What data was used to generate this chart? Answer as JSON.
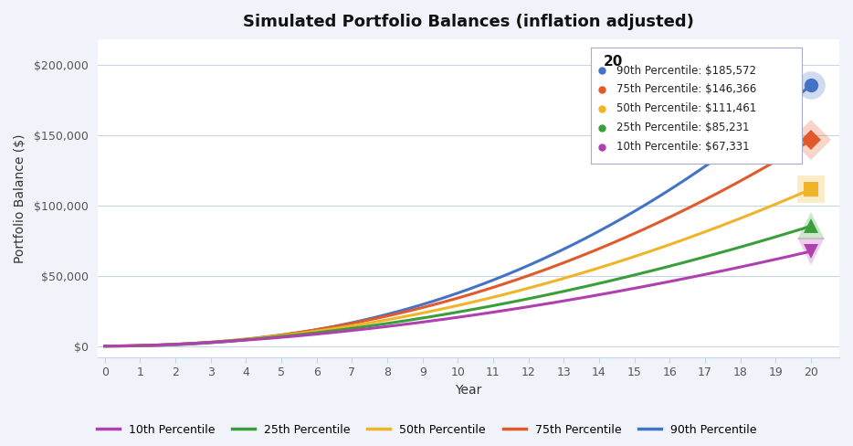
{
  "title": "Simulated Portfolio Balances (inflation adjusted)",
  "xlabel": "Year",
  "ylabel": "Portfolio Balance ($)",
  "years": 20,
  "series": [
    {
      "label": "90th Percentile",
      "color": "#4472c4",
      "final": 185572,
      "power": 2.3
    },
    {
      "label": "75th Percentile",
      "color": "#e05a2b",
      "final": 146366,
      "power": 2.1
    },
    {
      "label": "50th Percentile",
      "color": "#f0b429",
      "final": 111461,
      "power": 1.95
    },
    {
      "label": "25th Percentile",
      "color": "#3a9e3a",
      "final": 85231,
      "power": 1.82
    },
    {
      "label": "10th Percentile",
      "color": "#b040b0",
      "final": 67331,
      "power": 1.72
    }
  ],
  "legend_order": [
    "10th Percentile",
    "25th Percentile",
    "50th Percentile",
    "75th Percentile",
    "90th Percentile"
  ],
  "legend_colors": [
    "#b040b0",
    "#3a9e3a",
    "#f0b429",
    "#e05a2b",
    "#4472c4"
  ],
  "yticks": [
    0,
    50000,
    100000,
    150000,
    200000
  ],
  "ylim": [
    -8000,
    218000
  ],
  "xlim": [
    -0.2,
    20.8
  ],
  "background_color": "#f0f4fa",
  "plot_bg": "#ffffff",
  "tooltip_title": "20",
  "tooltip_entries": [
    {
      "label": "90th Percentile: $185,572",
      "color": "#4472c4"
    },
    {
      "label": "75th Percentile: $146,366",
      "color": "#e05a2b"
    },
    {
      "label": "50th Percentile: $111,461",
      "color": "#f0b429"
    },
    {
      "label": "25th Percentile: $85,231",
      "color": "#3a9e3a"
    },
    {
      "label": "10th Percentile: $67,331",
      "color": "#b040b0"
    }
  ],
  "marker_shapes": [
    "o",
    "D",
    "s",
    "^",
    "v"
  ]
}
